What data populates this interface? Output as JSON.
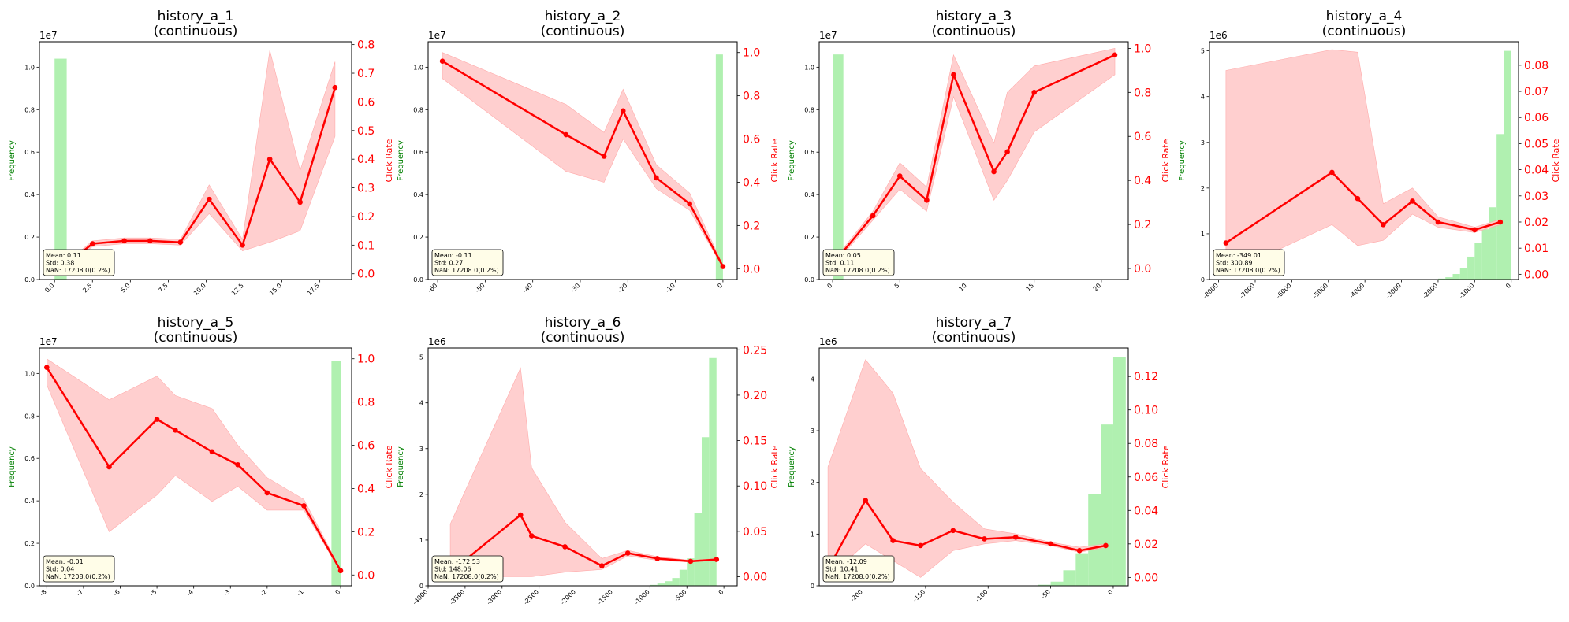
{
  "figure": {
    "background": "#ffffff",
    "bar_color": "#b0f0b0",
    "line_color": "#ff0000",
    "band_color": "#ffcccc",
    "left_axis_color": "#008000",
    "right_axis_color": "#ff0000"
  },
  "chart_data": [
    {
      "type": "bar+line",
      "title": "history_a_1",
      "subtitle": "(continuous)",
      "ylabel_left": "Frequency",
      "ylabel_right": "Click Rate",
      "left_multiplier": "1e7",
      "xlim": [
        -1,
        19.6
      ],
      "xticks": [
        0,
        2.5,
        5,
        7.5,
        10,
        12.5,
        15,
        17.5
      ],
      "xticklabels": [
        "0.0",
        "2.5",
        "5.0",
        "7.5",
        "10.0",
        "12.5",
        "15.0",
        "17.5"
      ],
      "yleft_lim": [
        0,
        11.2
      ],
      "yleft_ticks": [
        0,
        0.2,
        0.4,
        0.6,
        0.8,
        1.0
      ],
      "yleft_ticklabels": [
        "0.0",
        "0.2",
        "0.4",
        "0.6",
        "0.8",
        "1.0"
      ],
      "yleft_scale": 10,
      "yright_lim": [
        -0.02,
        0.81
      ],
      "yright_ticks": [
        0,
        0.1,
        0.2,
        0.3,
        0.4,
        0.5,
        0.6,
        0.7,
        0.8
      ],
      "yright_ticklabels": [
        "0.0",
        "0.1",
        "0.2",
        "0.3",
        "0.4",
        "0.5",
        "0.6",
        "0.7",
        "0.8"
      ],
      "bars": [
        {
          "x0": 0,
          "x1": 0.8,
          "v": 10.4
        }
      ],
      "line_x": [
        0,
        2.5,
        4.6,
        6.3,
        8.3,
        10.2,
        12.4,
        14.2,
        16.2,
        18.5
      ],
      "line_y": [
        0.0,
        0.105,
        0.115,
        0.115,
        0.11,
        0.26,
        0.1,
        0.4,
        0.25,
        0.65
      ],
      "band_lo": [
        -0.005,
        0.095,
        0.105,
        0.105,
        0.1,
        0.21,
        0.08,
        0.11,
        0.15,
        0.48
      ],
      "band_hi": [
        0.005,
        0.115,
        0.125,
        0.125,
        0.12,
        0.31,
        0.12,
        0.78,
        0.36,
        0.74
      ],
      "stats": {
        "mean": "Mean: 0.11",
        "std": "Std: 0.38",
        "nan": "NaN: 17208.0(0.2%)"
      }
    },
    {
      "type": "bar+line",
      "title": "history_a_2",
      "subtitle": "(continuous)",
      "ylabel_left": "Frequency",
      "ylabel_right": "Click Rate",
      "left_multiplier": "1e7",
      "xlim": [
        -62,
        3
      ],
      "xticks": [
        -60,
        -50,
        -40,
        -30,
        -20,
        -10,
        0
      ],
      "xticklabels": [
        "-60",
        "-50",
        "-40",
        "-30",
        "-20",
        "-10",
        "0"
      ],
      "yleft_lim": [
        0,
        11.2
      ],
      "yleft_ticks": [
        0,
        0.2,
        0.4,
        0.6,
        0.8,
        1.0
      ],
      "yleft_ticklabels": [
        "0.0",
        "0.2",
        "0.4",
        "0.6",
        "0.8",
        "1.0"
      ],
      "yleft_scale": 10,
      "yright_lim": [
        -0.05,
        1.05
      ],
      "yright_ticks": [
        0,
        0.2,
        0.4,
        0.6,
        0.8,
        1.0
      ],
      "yright_ticklabels": [
        "0.0",
        "0.2",
        "0.4",
        "0.6",
        "0.8",
        "1.0"
      ],
      "bars": [
        {
          "x0": -1.5,
          "x1": 0,
          "v": 10.6
        }
      ],
      "line_x": [
        -59,
        -33,
        -25,
        -21,
        -14,
        -7,
        0
      ],
      "line_y": [
        0.96,
        0.62,
        0.52,
        0.73,
        0.42,
        0.3,
        0.01
      ],
      "band_lo": [
        0.88,
        0.45,
        0.4,
        0.6,
        0.37,
        0.27,
        0.005
      ],
      "band_hi": [
        1.0,
        0.76,
        0.63,
        0.83,
        0.48,
        0.35,
        0.015
      ],
      "stats": {
        "mean": "Mean: -0.11",
        "std": "Std: 0.27",
        "nan": "NaN: 17208.0(0.2%)"
      }
    },
    {
      "type": "bar+line",
      "title": "history_a_3",
      "subtitle": "(continuous)",
      "ylabel_left": "Frequency",
      "ylabel_right": "Click Rate",
      "left_multiplier": "1e7",
      "xlim": [
        -1,
        22
      ],
      "xticks": [
        0,
        5,
        10,
        15,
        20
      ],
      "xticklabels": [
        "0",
        "5",
        "10",
        "15",
        "20"
      ],
      "yleft_lim": [
        0,
        11.2
      ],
      "yleft_ticks": [
        0,
        0.2,
        0.4,
        0.6,
        0.8,
        1.0
      ],
      "yleft_ticklabels": [
        "0.0",
        "0.2",
        "0.4",
        "0.6",
        "0.8",
        "1.0"
      ],
      "yleft_scale": 10,
      "yright_lim": [
        -0.05,
        1.03
      ],
      "yright_ticks": [
        0,
        0.2,
        0.4,
        0.6,
        0.8,
        1.0
      ],
      "yright_ticklabels": [
        "0.0",
        "0.2",
        "0.4",
        "0.6",
        "0.8",
        "1.0"
      ],
      "bars": [
        {
          "x0": 0,
          "x1": 0.8,
          "v": 10.6
        }
      ],
      "line_x": [
        0,
        3,
        5,
        7,
        9,
        12,
        13,
        15,
        21
      ],
      "line_y": [
        0.02,
        0.24,
        0.42,
        0.31,
        0.88,
        0.44,
        0.53,
        0.8,
        0.97
      ],
      "band_lo": [
        0.01,
        0.22,
        0.36,
        0.26,
        0.78,
        0.31,
        0.4,
        0.62,
        0.88
      ],
      "band_hi": [
        0.03,
        0.26,
        0.48,
        0.37,
        0.97,
        0.57,
        0.8,
        0.92,
        1.0
      ],
      "stats": {
        "mean": "Mean: 0.05",
        "std": "Std: 0.11",
        "nan": "NaN: 17208.0(0.2%)"
      }
    },
    {
      "type": "bar+line",
      "title": "history_a_4",
      "subtitle": "(continuous)",
      "ylabel_left": "Frequency",
      "ylabel_right": "Click Rate",
      "left_multiplier": "1e6",
      "xlim": [
        -8250,
        200
      ],
      "xticks": [
        -8000,
        -7000,
        -6000,
        -5000,
        -4000,
        -3000,
        -2000,
        -1000,
        0
      ],
      "xticklabels": [
        "-8000",
        "-7000",
        "-6000",
        "-5000",
        "-4000",
        "-3000",
        "-2000",
        "-1000",
        "0"
      ],
      "yleft_lim": [
        0,
        5.2
      ],
      "yleft_ticks": [
        0,
        1,
        2,
        3,
        4,
        5
      ],
      "yleft_ticklabels": [
        "0",
        "1",
        "2",
        "3",
        "4",
        "5"
      ],
      "yleft_scale": 1,
      "yright_lim": [
        -0.002,
        0.089
      ],
      "yright_ticks": [
        0,
        0.01,
        0.02,
        0.03,
        0.04,
        0.05,
        0.06,
        0.07,
        0.08
      ],
      "yright_ticklabels": [
        "0.00",
        "0.01",
        "0.02",
        "0.03",
        "0.04",
        "0.05",
        "0.06",
        "0.07",
        "0.08"
      ],
      "bars": [
        {
          "x0": -2000,
          "x1": -1800,
          "v": 0.02
        },
        {
          "x0": -1800,
          "x1": -1600,
          "v": 0.05
        },
        {
          "x0": -1600,
          "x1": -1400,
          "v": 0.12
        },
        {
          "x0": -1400,
          "x1": -1200,
          "v": 0.25
        },
        {
          "x0": -1200,
          "x1": -1000,
          "v": 0.5
        },
        {
          "x0": -1000,
          "x1": -800,
          "v": 0.8
        },
        {
          "x0": -800,
          "x1": -600,
          "v": 1.1
        },
        {
          "x0": -600,
          "x1": -400,
          "v": 1.58
        },
        {
          "x0": -400,
          "x1": -200,
          "v": 3.18
        },
        {
          "x0": -200,
          "x1": 0,
          "v": 5.0
        }
      ],
      "line_x": [
        -7800,
        -4900,
        -4200,
        -3500,
        -2700,
        -2000,
        -1000,
        -300
      ],
      "line_y": [
        0.012,
        0.039,
        0.029,
        0.019,
        0.028,
        0.02,
        0.017,
        0.02
      ],
      "band_lo": [
        0.0,
        0.019,
        0.011,
        0.013,
        0.023,
        0.018,
        0.016,
        0.019
      ],
      "band_hi": [
        0.078,
        0.086,
        0.085,
        0.027,
        0.033,
        0.022,
        0.018,
        0.021
      ],
      "stats": {
        "mean": "Mean: -349.01",
        "std": "Std: 300.89",
        "nan": "NaN: 17208.0(0.2%)"
      }
    },
    {
      "type": "bar+line",
      "title": "history_a_5",
      "subtitle": "(continuous)",
      "ylabel_left": "Frequency",
      "ylabel_right": "Click Rate",
      "left_multiplier": "1e7",
      "xlim": [
        -8.2,
        0.3
      ],
      "xticks": [
        -8,
        -7,
        -6,
        -5,
        -4,
        -3,
        -2,
        -1,
        0
      ],
      "xticklabels": [
        "-8",
        "-7",
        "-6",
        "-5",
        "-4",
        "-3",
        "-2",
        "-1",
        "0"
      ],
      "yleft_lim": [
        0,
        11.2
      ],
      "yleft_ticks": [
        0,
        0.2,
        0.4,
        0.6,
        0.8,
        1.0
      ],
      "yleft_ticklabels": [
        "0.0",
        "0.2",
        "0.4",
        "0.6",
        "0.8",
        "1.0"
      ],
      "yleft_scale": 10,
      "yright_lim": [
        -0.05,
        1.05
      ],
      "yright_ticks": [
        0,
        0.2,
        0.4,
        0.6,
        0.8,
        1.0
      ],
      "yright_ticklabels": [
        "0.0",
        "0.2",
        "0.4",
        "0.6",
        "0.8",
        "1.0"
      ],
      "bars": [
        {
          "x0": -0.25,
          "x1": 0,
          "v": 10.6
        }
      ],
      "line_x": [
        -8,
        -6.3,
        -5,
        -4.5,
        -3.5,
        -2.8,
        -2,
        -1,
        0
      ],
      "line_y": [
        0.96,
        0.5,
        0.72,
        0.67,
        0.57,
        0.51,
        0.38,
        0.32,
        0.02
      ],
      "band_lo": [
        0.88,
        0.2,
        0.37,
        0.46,
        0.34,
        0.41,
        0.3,
        0.3,
        0.015
      ],
      "band_hi": [
        1.0,
        0.81,
        0.92,
        0.83,
        0.77,
        0.6,
        0.45,
        0.35,
        0.025
      ],
      "stats": {
        "mean": "Mean: -0.01",
        "std": "Std: 0.04",
        "nan": "NaN: 17208.0(0.2%)"
      }
    },
    {
      "type": "bar+line",
      "title": "history_a_6",
      "subtitle": "(continuous)",
      "ylabel_left": "Frequency",
      "ylabel_right": "Click Rate",
      "left_multiplier": "1e6",
      "xlim": [
        -4000,
        180
      ],
      "xticks": [
        -4000,
        -3500,
        -3000,
        -2500,
        -2000,
        -1500,
        -1000,
        -500,
        0
      ],
      "xticklabels": [
        "-4000",
        "-3500",
        "-3000",
        "-2500",
        "-2000",
        "-1500",
        "-1000",
        "-500",
        "0"
      ],
      "yleft_lim": [
        0,
        5.2
      ],
      "yleft_ticks": [
        0,
        1,
        2,
        3,
        4,
        5
      ],
      "yleft_ticklabels": [
        "0",
        "1",
        "2",
        "3",
        "4",
        "5"
      ],
      "yleft_scale": 1,
      "yright_lim": [
        -0.01,
        0.252
      ],
      "yright_ticks": [
        0,
        0.05,
        0.1,
        0.15,
        0.2,
        0.25
      ],
      "yright_ticklabels": [
        "0.00",
        "0.05",
        "0.10",
        "0.15",
        "0.20",
        "0.25"
      ],
      "bars": [
        {
          "x0": -1000,
          "x1": -900,
          "v": 0.02
        },
        {
          "x0": -900,
          "x1": -800,
          "v": 0.05
        },
        {
          "x0": -800,
          "x1": -700,
          "v": 0.1
        },
        {
          "x0": -700,
          "x1": -600,
          "v": 0.17
        },
        {
          "x0": -600,
          "x1": -500,
          "v": 0.35
        },
        {
          "x0": -500,
          "x1": -400,
          "v": 0.6
        },
        {
          "x0": -400,
          "x1": -300,
          "v": 1.6
        },
        {
          "x0": -300,
          "x1": -200,
          "v": 3.25
        },
        {
          "x0": -200,
          "x1": -100,
          "v": 4.98
        }
      ],
      "line_x": [
        -3700,
        -2750,
        -2600,
        -2150,
        -1650,
        -1300,
        -900,
        -450,
        -100
      ],
      "line_y": [
        0.005,
        0.068,
        0.045,
        0.033,
        0.012,
        0.026,
        0.02,
        0.017,
        0.019
      ],
      "band_lo": [
        0.0,
        0.0,
        0.0,
        0.005,
        0.008,
        0.023,
        0.018,
        0.016,
        0.018
      ],
      "band_hi": [
        0.058,
        0.23,
        0.12,
        0.06,
        0.02,
        0.029,
        0.022,
        0.018,
        0.02
      ],
      "stats": {
        "mean": "Mean: -172.53",
        "std": "Std: 148.06",
        "nan": "NaN: 17208.0(0.2%)"
      }
    },
    {
      "type": "bar+line",
      "title": "history_a_7",
      "subtitle": "(continuous)",
      "ylabel_left": "Frequency",
      "ylabel_right": "Click Rate",
      "left_multiplier": "1e6",
      "xlim": [
        -235,
        12
      ],
      "xticks": [
        -200,
        -150,
        -100,
        -50,
        0
      ],
      "xticklabels": [
        "-200",
        "-150",
        "-100",
        "-50",
        "0"
      ],
      "yleft_lim": [
        0,
        4.6
      ],
      "yleft_ticks": [
        0,
        1,
        2,
        3,
        4
      ],
      "yleft_ticklabels": [
        "0",
        "1",
        "2",
        "3",
        "4"
      ],
      "yleft_scale": 1,
      "yright_lim": [
        -0.005,
        0.137
      ],
      "yright_ticks": [
        0,
        0.02,
        0.04,
        0.06,
        0.08,
        0.1,
        0.12
      ],
      "yright_ticklabels": [
        "0.00",
        "0.02",
        "0.04",
        "0.06",
        "0.08",
        "0.10",
        "0.12"
      ],
      "bars": [
        {
          "x0": -60,
          "x1": -50,
          "v": 0.02
        },
        {
          "x0": -50,
          "x1": -40,
          "v": 0.08
        },
        {
          "x0": -40,
          "x1": -30,
          "v": 0.3
        },
        {
          "x0": -30,
          "x1": -20,
          "v": 0.63
        },
        {
          "x0": -20,
          "x1": -10,
          "v": 1.78
        },
        {
          "x0": -10,
          "x1": 0,
          "v": 3.12
        },
        {
          "x0": 0,
          "x1": 10,
          "v": 4.43
        }
      ],
      "line_x": [
        -228,
        -198,
        -176,
        -154,
        -128,
        -103,
        -78,
        -50,
        -27,
        -6
      ],
      "line_y": [
        0.005,
        0.046,
        0.022,
        0.019,
        0.028,
        0.023,
        0.024,
        0.02,
        0.016,
        0.019
      ],
      "band_lo": [
        0.0,
        0.02,
        0.01,
        0.0,
        0.016,
        0.02,
        0.022,
        0.019,
        0.015,
        0.018
      ],
      "band_hi": [
        0.066,
        0.13,
        0.11,
        0.065,
        0.045,
        0.029,
        0.026,
        0.021,
        0.018,
        0.02
      ],
      "stats": {
        "mean": "Mean: -12.09",
        "std": "Std: 10.41",
        "nan": "NaN: 17208.0(0.2%)"
      }
    }
  ]
}
